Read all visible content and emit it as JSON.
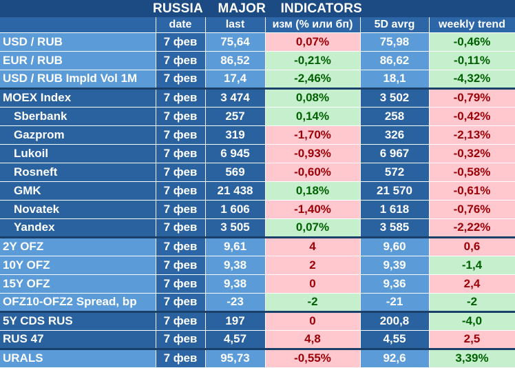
{
  "title_words": [
    "RUSSIA",
    "MAJOR",
    "INDICATORS"
  ],
  "headers": [
    "",
    "date",
    "last",
    "изм (% или бп)",
    "5D avrg",
    "weekly trend"
  ],
  "rows": [
    {
      "name": "USD / RUB",
      "date": "7 фев",
      "last": "75,64",
      "chg": "0,07%",
      "avg": "75,98",
      "wk": "-0,46%",
      "chg_sign": "neg",
      "wk_sign": "pos",
      "indent": false,
      "dark": false,
      "group_end": false
    },
    {
      "name": "EUR / RUB",
      "date": "7 фев",
      "last": "86,52",
      "chg": "-0,21%",
      "avg": "86,62",
      "wk": "-0,11%",
      "chg_sign": "pos",
      "wk_sign": "pos",
      "indent": false,
      "dark": false,
      "group_end": false
    },
    {
      "name": "USD / RUB Impld Vol 1M",
      "date": "7 фев",
      "last": "17,4",
      "chg": "-2,46%",
      "avg": "18,1",
      "wk": "-4,32%",
      "chg_sign": "pos",
      "wk_sign": "pos",
      "indent": false,
      "dark": false,
      "group_end": true
    },
    {
      "name": "MOEX Index",
      "date": "7 фев",
      "last": "3 474",
      "chg": "0,08%",
      "avg": "3 502",
      "wk": "-0,79%",
      "chg_sign": "pos",
      "wk_sign": "neg",
      "indent": false,
      "dark": true,
      "group_end": false
    },
    {
      "name": "Sberbank",
      "date": "7 фев",
      "last": "257",
      "chg": "0,14%",
      "avg": "258",
      "wk": "-0,42%",
      "chg_sign": "pos",
      "wk_sign": "neg",
      "indent": true,
      "dark": true,
      "group_end": false
    },
    {
      "name": "Gazprom",
      "date": "7 фев",
      "last": "319",
      "chg": "-1,70%",
      "avg": "326",
      "wk": "-2,13%",
      "chg_sign": "neg",
      "wk_sign": "neg",
      "indent": true,
      "dark": true,
      "group_end": false
    },
    {
      "name": "Lukoil",
      "date": "7 фев",
      "last": "6 945",
      "chg": "-0,93%",
      "avg": "6 967",
      "wk": "-0,32%",
      "chg_sign": "neg",
      "wk_sign": "neg",
      "indent": true,
      "dark": true,
      "group_end": false
    },
    {
      "name": "Rosneft",
      "date": "7 фев",
      "last": "569",
      "chg": "-0,60%",
      "avg": "572",
      "wk": "-0,58%",
      "chg_sign": "neg",
      "wk_sign": "neg",
      "indent": true,
      "dark": true,
      "group_end": false
    },
    {
      "name": "GMK",
      "date": "7 фев",
      "last": "21 438",
      "chg": "0,18%",
      "avg": "21 570",
      "wk": "-0,61%",
      "chg_sign": "pos",
      "wk_sign": "neg",
      "indent": true,
      "dark": true,
      "group_end": false
    },
    {
      "name": "Novatek",
      "date": "7 фев",
      "last": "1 606",
      "chg": "-1,40%",
      "avg": "1 618",
      "wk": "-0,76%",
      "chg_sign": "neg",
      "wk_sign": "neg",
      "indent": true,
      "dark": true,
      "group_end": false
    },
    {
      "name": "Yandex",
      "date": "7 фев",
      "last": "3 505",
      "chg": "0,07%",
      "avg": "3 585",
      "wk": "-2,22%",
      "chg_sign": "pos",
      "wk_sign": "neg",
      "indent": true,
      "dark": true,
      "group_end": true
    },
    {
      "name": "2Y OFZ",
      "date": "7 фев",
      "last": "9,61",
      "chg": "4",
      "avg": "9,60",
      "wk": "0,6",
      "chg_sign": "neg",
      "wk_sign": "neg",
      "indent": false,
      "dark": false,
      "group_end": false
    },
    {
      "name": "10Y OFZ",
      "date": "7 фев",
      "last": "9,38",
      "chg": "2",
      "avg": "9,39",
      "wk": "-1,4",
      "chg_sign": "neg",
      "wk_sign": "pos",
      "indent": false,
      "dark": false,
      "group_end": false
    },
    {
      "name": "15Y OFZ",
      "date": "7 фев",
      "last": "9,38",
      "chg": "0",
      "avg": "9,36",
      "wk": "2,4",
      "chg_sign": "neg",
      "wk_sign": "neg",
      "indent": false,
      "dark": false,
      "group_end": false
    },
    {
      "name": "OFZ10-OFZ2 Spread, bp",
      "date": "7 фев",
      "last": "-23",
      "chg": "-2",
      "avg": "-21",
      "wk": "-2",
      "chg_sign": "pos",
      "wk_sign": "pos",
      "indent": false,
      "dark": false,
      "group_end": true
    },
    {
      "name": "5Y CDS RUS",
      "date": "7 фев",
      "last": "197",
      "chg": "0",
      "avg": "200,8",
      "wk": "-4,0",
      "chg_sign": "neg",
      "wk_sign": "pos",
      "indent": false,
      "dark": true,
      "group_end": false
    },
    {
      "name": "RUS 47",
      "date": "7 фев",
      "last": "4,57",
      "chg": "4,8",
      "avg": "4,55",
      "wk": "2,5",
      "chg_sign": "neg",
      "wk_sign": "neg",
      "indent": false,
      "dark": true,
      "group_end": true
    },
    {
      "name": "URALS",
      "date": "7 фев",
      "last": "95,73",
      "chg": "-0,55%",
      "avg": "92,6",
      "wk": "3,39%",
      "chg_sign": "neg",
      "wk_sign": "pos",
      "indent": false,
      "dark": false,
      "group_end": false
    }
  ]
}
